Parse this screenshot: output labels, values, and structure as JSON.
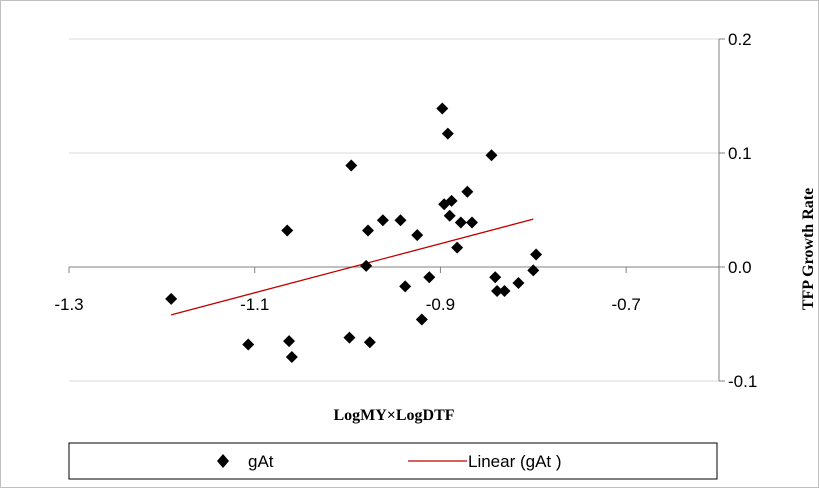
{
  "chart_data": {
    "type": "scatter",
    "xlabel": "LogMY×LogDTF",
    "ylabel": "TFP Growth Rate",
    "xlim": [
      -1.3,
      -0.6
    ],
    "ylim": [
      -0.1,
      0.2
    ],
    "x_ticks": [
      "-1.3",
      "-1.1",
      "-0.9",
      "-0.7"
    ],
    "y_ticks": [
      "0.2",
      "0.1",
      "0.0",
      "-0.1"
    ],
    "grid": "horizontal",
    "legend_position": "bottom",
    "series": [
      {
        "name": "gAt",
        "marker": "diamond",
        "color": "#000000",
        "points": [
          [
            -1.19,
            -0.028
          ],
          [
            -1.107,
            -0.068
          ],
          [
            -1.065,
            0.032
          ],
          [
            -1.063,
            -0.065
          ],
          [
            -1.06,
            -0.079
          ],
          [
            -0.996,
            0.089
          ],
          [
            -0.998,
            -0.062
          ],
          [
            -0.98,
            0.001
          ],
          [
            -0.978,
            0.032
          ],
          [
            -0.976,
            -0.066
          ],
          [
            -0.962,
            0.041
          ],
          [
            -0.943,
            0.041
          ],
          [
            -0.938,
            -0.017
          ],
          [
            -0.925,
            0.028
          ],
          [
            -0.92,
            -0.046
          ],
          [
            -0.912,
            -0.009
          ],
          [
            -0.898,
            0.139
          ],
          [
            -0.896,
            0.055
          ],
          [
            -0.892,
            0.117
          ],
          [
            -0.89,
            0.045
          ],
          [
            -0.888,
            0.058
          ],
          [
            -0.882,
            0.017
          ],
          [
            -0.878,
            0.039
          ],
          [
            -0.871,
            0.066
          ],
          [
            -0.866,
            0.039
          ],
          [
            -0.845,
            0.098
          ],
          [
            -0.841,
            -0.009
          ],
          [
            -0.839,
            -0.021
          ],
          [
            -0.831,
            -0.021
          ],
          [
            -0.816,
            -0.014
          ],
          [
            -0.8,
            -0.003
          ],
          [
            -0.797,
            0.011
          ]
        ]
      },
      {
        "name": "Linear (gAt )",
        "type": "line",
        "color": "#c00000",
        "points": [
          [
            -1.19,
            -0.042
          ],
          [
            -0.8,
            0.042
          ]
        ]
      }
    ]
  }
}
